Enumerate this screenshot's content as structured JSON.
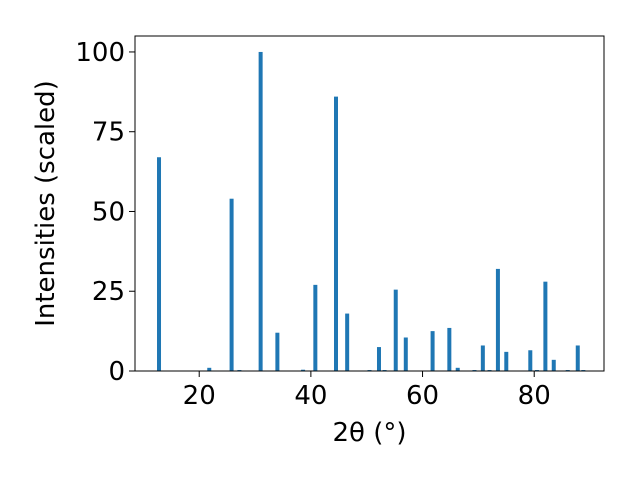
{
  "chart_data": {
    "type": "bar",
    "xlabel": "2θ (°)",
    "ylabel": "Intensities (scaled)",
    "xlim": [
      8.5,
      92.5
    ],
    "ylim": [
      0,
      105
    ],
    "x_ticks": [
      20,
      40,
      60,
      80
    ],
    "y_ticks": [
      0,
      25,
      50,
      75,
      100
    ],
    "bar_width": 0.7,
    "bar_color": "#1f77b4",
    "series": [
      {
        "x": [
          12.8,
          21.8,
          25.8,
          27.2,
          31.0,
          34.0,
          38.6,
          40.8,
          44.5,
          46.5,
          50.5,
          52.2,
          53.2,
          55.2,
          57.0,
          61.8,
          64.8,
          66.3,
          69.3,
          70.8,
          72.0,
          73.5,
          75.0,
          79.3,
          80.5,
          82.0,
          83.5,
          86.0,
          87.8,
          88.8
        ],
        "values": [
          67,
          1,
          54,
          0.3,
          100,
          12,
          0.4,
          27,
          86,
          18,
          0.3,
          7.5,
          0.3,
          25.5,
          10.5,
          12.5,
          13.5,
          1,
          0.3,
          8,
          0.3,
          32,
          6,
          6.5,
          0.3,
          28,
          3.5,
          0.3,
          8,
          0.3
        ]
      }
    ]
  }
}
